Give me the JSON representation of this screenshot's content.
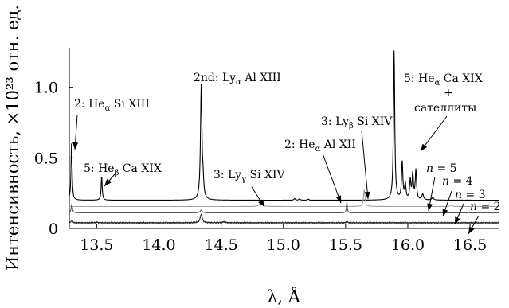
{
  "chart_data": {
    "type": "line",
    "xlabel": "λ, Å",
    "ylabel": "Интенсивность, ×10²³ отн. ед.",
    "xlim": [
      13.28,
      16.73
    ],
    "ylim": [
      0,
      1.28
    ],
    "x_ticks": [
      13.5,
      14.0,
      14.5,
      15.0,
      15.5,
      16.0,
      16.5
    ],
    "x_tick_labels": [
      "13.5",
      "14.0",
      "14.5",
      "15.0",
      "15.5",
      "16.0",
      "16.5"
    ],
    "y_ticks": [
      0,
      0.5,
      1.0
    ],
    "y_tick_labels": [
      "0",
      "0.5",
      "1.0"
    ],
    "grid": false,
    "legend": "none",
    "series": [
      {
        "color": "#000000",
        "baseline": 0.2,
        "noise": 0.0,
        "peaks": [
          {
            "x": 13.298,
            "h": 0.41,
            "w": 0.005
          },
          {
            "x": 13.54,
            "h": 0.17,
            "w": 0.005
          },
          {
            "x": 14.34,
            "h": 0.81,
            "w": 0.007
          },
          {
            "x": 14.355,
            "h": 0.1,
            "w": 0.006
          },
          {
            "x": 15.09,
            "h": 0.012,
            "w": 0.006
          },
          {
            "x": 15.13,
            "h": 0.01,
            "w": 0.006
          },
          {
            "x": 15.2,
            "h": 0.008,
            "w": 0.006
          },
          {
            "x": 15.89,
            "h": 1.06,
            "w": 0.006
          },
          {
            "x": 15.955,
            "h": 0.27,
            "w": 0.006
          },
          {
            "x": 15.98,
            "h": 0.11,
            "w": 0.006
          },
          {
            "x": 16.02,
            "h": 0.14,
            "w": 0.006
          },
          {
            "x": 16.04,
            "h": 0.18,
            "w": 0.006
          },
          {
            "x": 16.065,
            "h": 0.21,
            "w": 0.006
          },
          {
            "x": 16.12,
            "h": 0.04,
            "w": 0.008
          },
          {
            "x": 16.2,
            "h": 0.02,
            "w": 0.008
          }
        ]
      },
      {
        "color": "#a0a0a0",
        "baseline": 0.155,
        "noise": 0.0,
        "peaks": [
          {
            "x": 14.82,
            "h": 0.035,
            "w": 0.012
          },
          {
            "x": 15.65,
            "h": 0.12,
            "w": 0.007
          },
          {
            "x": 16.35,
            "h": 0.01,
            "w": 0.01
          }
        ]
      },
      {
        "color": "#555555",
        "baseline": 0.11,
        "noise": 0.0,
        "peaks": [
          {
            "x": 13.3,
            "h": 0.06,
            "w": 0.006
          },
          {
            "x": 14.34,
            "h": 0.02,
            "w": 0.01
          },
          {
            "x": 15.51,
            "h": 0.08,
            "w": 0.004
          }
        ]
      },
      {
        "color": "#222222",
        "baseline": 0.04,
        "noise": 0.004,
        "peaks": [
          {
            "x": 13.3,
            "h": 0.02,
            "w": 0.006
          },
          {
            "x": 13.5,
            "h": 0.005,
            "w": 0.01
          },
          {
            "x": 14.34,
            "h": 0.06,
            "w": 0.01
          },
          {
            "x": 14.52,
            "h": 0.006,
            "w": 0.015
          },
          {
            "x": 15.51,
            "h": 0.01,
            "w": 0.006
          }
        ]
      }
    ],
    "annotations": [
      {
        "text": "2: He",
        "sub": "α",
        "rest": " Si XIII",
        "arrow_to": [
          13.3,
          0.6
        ]
      },
      {
        "text": "5: He",
        "sub": "β",
        "rest": " Ca XIX",
        "arrow_to": [
          13.54,
          0.37
        ]
      },
      {
        "text": "2nd: Ly",
        "sub": "α",
        "rest": " Al XIII",
        "arrow_to": null
      },
      {
        "text": "3: Ly",
        "sub": "γ",
        "rest": " Si XIV",
        "arrow_to": [
          14.83,
          0.18
        ]
      },
      {
        "text": "2: He",
        "sub": "α",
        "rest": " Al XII",
        "arrow_to": [
          15.51,
          0.21
        ]
      },
      {
        "text": "3: Ly",
        "sub": "β",
        "rest": " Si XIV",
        "arrow_to": [
          15.65,
          0.27
        ]
      },
      {
        "text": "5: He",
        "sub": "α",
        "rest": " Ca XIX",
        "arrow_to": null
      },
      {
        "text": "+",
        "sub": "",
        "rest": "",
        "arrow_to": null
      },
      {
        "text": "сателлиты",
        "sub": "",
        "rest": "",
        "arrow_to": [
          16.05,
          0.42
        ]
      },
      {
        "text": "n",
        "sub": "",
        "rest": " = 5",
        "arrow_to": [
          16.18,
          0.23
        ]
      },
      {
        "text": "n",
        "sub": "",
        "rest": " = 4",
        "arrow_to": [
          16.25,
          0.18
        ]
      },
      {
        "text": "n",
        "sub": "",
        "rest": " = 3",
        "arrow_to": [
          16.38,
          0.13
        ]
      },
      {
        "text": "n",
        "sub": "",
        "rest": " = 2",
        "arrow_to": [
          16.55,
          0.07
        ]
      }
    ]
  }
}
